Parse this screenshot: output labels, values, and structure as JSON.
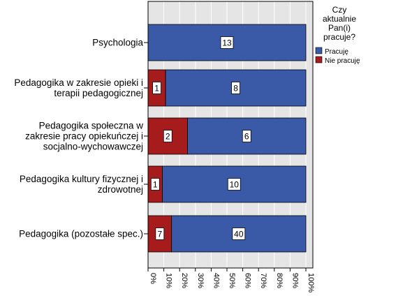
{
  "chart_data": {
    "type": "bar",
    "orientation": "horizontal",
    "stacked": true,
    "percent_scale": true,
    "categories": [
      [
        "Psychologia"
      ],
      [
        "Pedagogika w zakresie opieki i",
        "terapii pedagogicznej"
      ],
      [
        "Pedagogika społeczna w",
        "zakresie pracy opiekuńczej i",
        "socjalno-wychowawczej"
      ],
      [
        "Pedagogika kultury fizycznej i",
        "zdrowotnej"
      ],
      [
        "Pedagogika (pozostałe spec.)"
      ]
    ],
    "series": [
      {
        "name": "Nie pracuję",
        "color": "#a61c1c",
        "values": [
          0,
          1,
          2,
          1,
          7
        ]
      },
      {
        "name": "Pracuję",
        "color": "#3a5aa8",
        "values": [
          13,
          8,
          6,
          10,
          40
        ]
      }
    ],
    "xlim": [
      0,
      100
    ],
    "xticks": [
      "0%",
      "10%",
      "20%",
      "30%",
      "40%",
      "50%",
      "60%",
      "70%",
      "80%",
      "90%",
      "100%"
    ],
    "grid": true,
    "plot_background": "#e5e5e5",
    "legend": {
      "title": [
        "Czy",
        "aktualnie",
        "Pan(i)",
        "pracuje?"
      ],
      "items": [
        "Pracuję",
        "Nie pracuję"
      ],
      "colors": [
        "#3a5aa8",
        "#a61c1c"
      ],
      "placement": "top-right"
    }
  }
}
